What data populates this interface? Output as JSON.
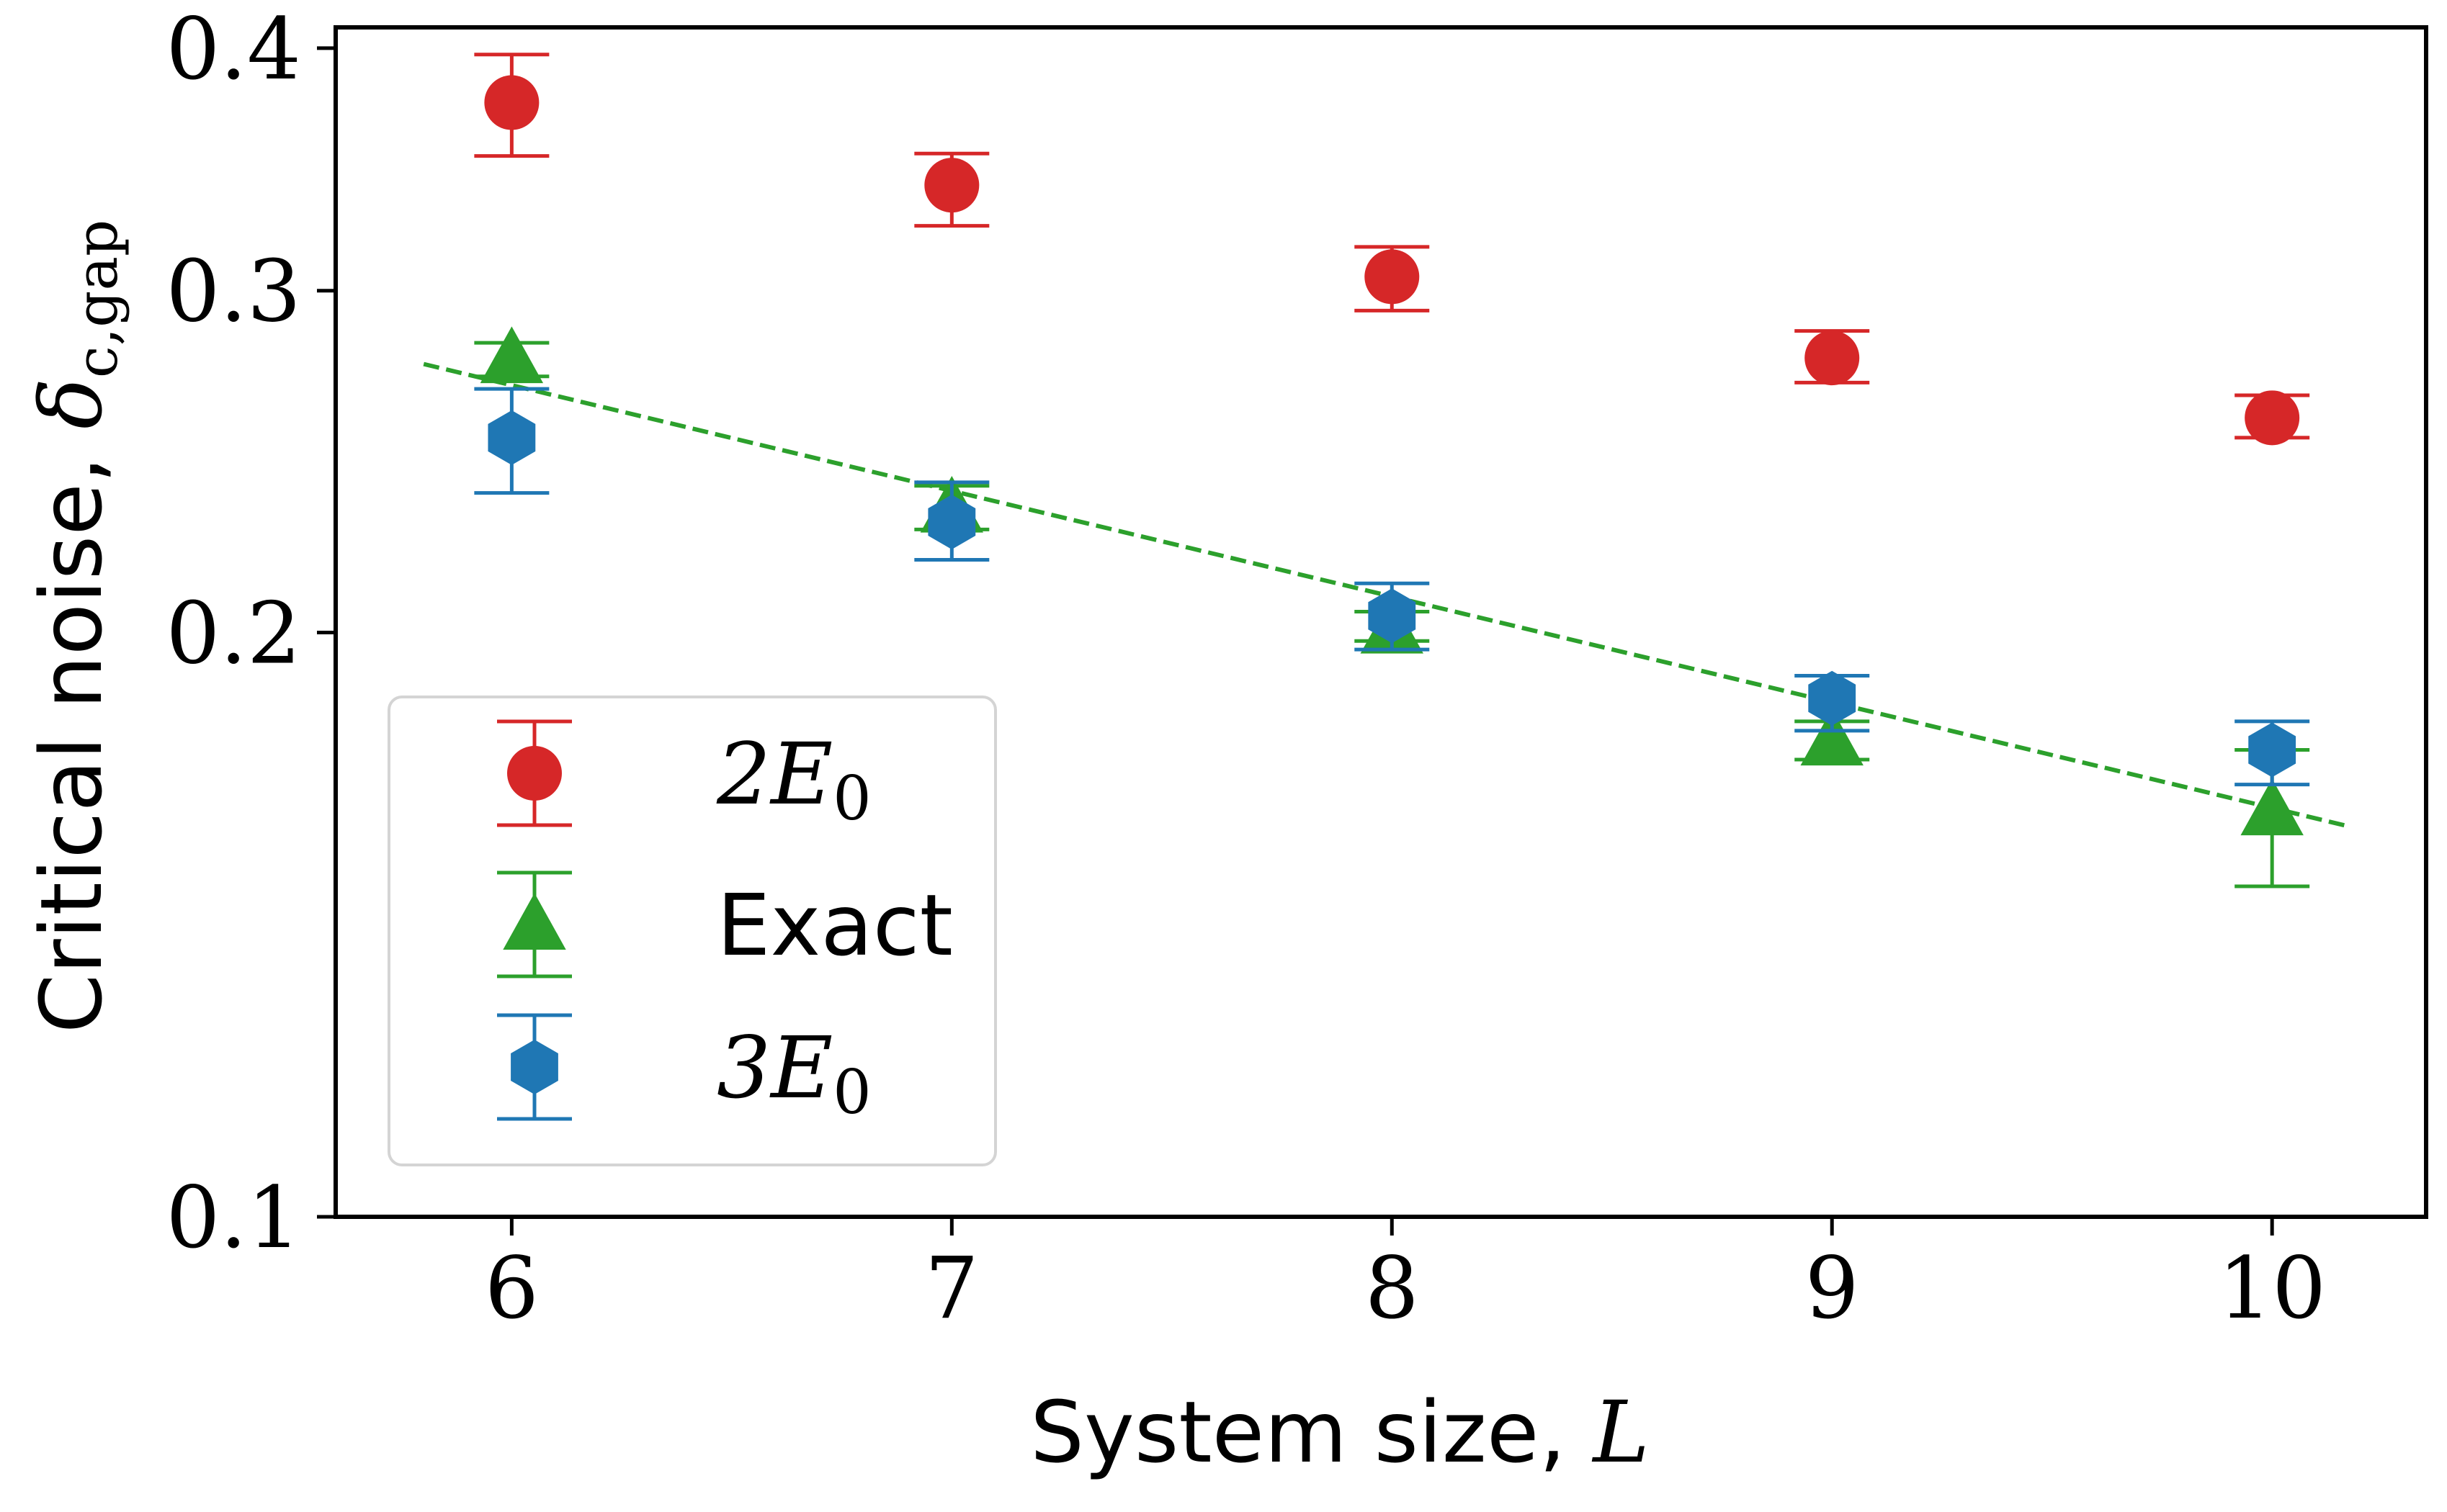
{
  "chart_data": {
    "type": "scatter",
    "title": "",
    "xlabel": "System size, L",
    "ylabel": "Critical noise, δ_c,gap",
    "xlabel_text": "System size, ",
    "xlabel_var": "L",
    "ylabel_text": "Critical noise, ",
    "ylabel_var": "δ",
    "ylabel_sub": "c,gap",
    "yscale": "log",
    "xlim": [
      5.6,
      10.35
    ],
    "ylim": [
      0.1,
      0.41
    ],
    "x_ticks": [
      6,
      7,
      8,
      9,
      10
    ],
    "x_tick_labels": [
      "6",
      "7",
      "8",
      "9",
      "10"
    ],
    "y_ticks": [
      0.1,
      0.2,
      0.3,
      0.4
    ],
    "y_tick_labels": [
      "0.1",
      "0.2",
      "0.3",
      "0.4"
    ],
    "legend_position": "lower-left",
    "series": [
      {
        "name": "2E_0",
        "legend_label": "2E",
        "legend_sub": "0",
        "marker": "circle",
        "color": "#d62728",
        "x": [
          6,
          7,
          8,
          9,
          10
        ],
        "y": [
          0.375,
          0.34,
          0.305,
          0.277,
          0.258
        ],
        "yerr_low": [
          0.352,
          0.324,
          0.293,
          0.269,
          0.252
        ],
        "yerr_high": [
          0.397,
          0.353,
          0.316,
          0.286,
          0.265
        ]
      },
      {
        "name": "Exact",
        "legend_label": "Exact",
        "legend_sub": "",
        "marker": "triangle",
        "color": "#2ca02c",
        "x": [
          6,
          7,
          8,
          9,
          10
        ],
        "y": [
          0.277,
          0.232,
          0.201,
          0.176,
          0.162
        ],
        "yerr_low": [
          0.271,
          0.226,
          0.198,
          0.172,
          0.148
        ],
        "yerr_high": [
          0.282,
          0.238,
          0.205,
          0.18,
          0.174
        ]
      },
      {
        "name": "3E_0",
        "legend_label": "3E",
        "legend_sub": "0",
        "marker": "hexagon",
        "color": "#1f77b4",
        "x": [
          6,
          7,
          8,
          9,
          10
        ],
        "y": [
          0.252,
          0.228,
          0.204,
          0.185,
          0.174
        ],
        "yerr_low": [
          0.236,
          0.218,
          0.196,
          0.178,
          0.167
        ],
        "yerr_high": [
          0.267,
          0.239,
          0.212,
          0.19,
          0.18
        ]
      }
    ],
    "fit_line": {
      "name": "Exact fit",
      "style": "dashed",
      "color": "#2ca02c",
      "x": [
        5.8,
        10.17
      ],
      "y": [
        0.275,
        0.159
      ]
    }
  }
}
